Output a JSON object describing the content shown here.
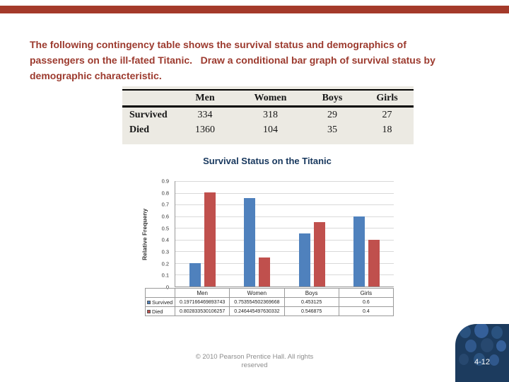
{
  "slide": {
    "intro_text": "The following contingency table shows the survival status and demographics of\npassengers on the ill-fated Titanic.   Draw a conditional bar graph of survival status by\ndemographic characteristic.",
    "footer_text": "© 2010 Pearson Prentice Hall. All rights\nreserved",
    "page_number": "4-12",
    "accent_color": "#A43A2A",
    "corner_color": "#1C3B5E"
  },
  "contingency": {
    "headers": [
      "Men",
      "Women",
      "Boys",
      "Girls"
    ],
    "rows": [
      {
        "label": "Survived",
        "values": [
          "334",
          "318",
          "29",
          "27"
        ]
      },
      {
        "label": "Died",
        "values": [
          "1360",
          "104",
          "35",
          "18"
        ]
      }
    ]
  },
  "chart_data": {
    "type": "bar",
    "title": "Survival Status on the Titanic",
    "xlabel": "",
    "ylabel": "Relative Frequeny",
    "categories": [
      "Men",
      "Women",
      "Boys",
      "Girls"
    ],
    "series": [
      {
        "name": "Survived",
        "color": "#4F81BD",
        "values": [
          0.197166469893743,
          0.753554502369668,
          0.453125,
          0.6
        ],
        "display": [
          "0.197166469893743",
          "0.753554502369668",
          "0.453125",
          "0.6"
        ]
      },
      {
        "name": "Died",
        "color": "#C0504D",
        "values": [
          0.802833530106257,
          0.246445497630332,
          0.546875,
          0.4
        ],
        "display": [
          "0.802833530106257",
          "0.246445497630332",
          "0.546875",
          "0.4"
        ]
      }
    ],
    "ylim": [
      0,
      0.9
    ],
    "yticks": [
      0,
      0.1,
      0.2,
      0.3,
      0.4,
      0.5,
      0.6,
      0.7,
      0.8,
      0.9
    ],
    "grid": true,
    "legend_position": "data-table"
  }
}
